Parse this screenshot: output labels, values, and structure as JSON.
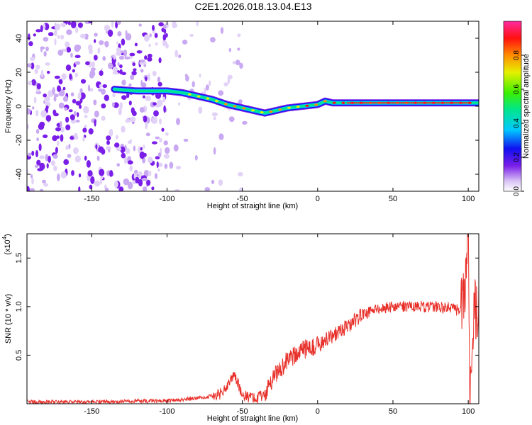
{
  "title": "C2E1.2026.018.13.04.E13",
  "chart_data": [
    {
      "type": "heatmap",
      "xlabel": "Height of straight line (km)",
      "ylabel": "Frequency (Hz)",
      "xlim": [
        -193,
        107
      ],
      "ylim": [
        -50,
        50
      ],
      "xticks": [
        -150,
        -100,
        -50,
        0,
        50,
        100
      ],
      "yticks": [
        -40,
        -20,
        0,
        20,
        40
      ],
      "ridge": {
        "x": [
          -135,
          -120,
          -100,
          -90,
          -80,
          -70,
          -60,
          -50,
          -40,
          -35,
          -30,
          -20,
          -10,
          0,
          5,
          10,
          20,
          40,
          60,
          80,
          100,
          107
        ],
        "y": [
          10,
          9,
          9,
          8,
          6,
          4,
          1,
          -1,
          -3,
          -4,
          -3,
          -1,
          0,
          1,
          3,
          2,
          2,
          2,
          2,
          2,
          2,
          2
        ]
      },
      "colorbar": {
        "label": "Normalized spectral amplitude",
        "range": [
          0.0,
          1.0
        ],
        "ticks": [
          0.0,
          0.2,
          0.4,
          0.6,
          0.8
        ]
      }
    },
    {
      "type": "line",
      "xlabel": "Height of straight line (km)",
      "ylabel": "SNR (10 * v/v)",
      "ylabel_scale": "(x10",
      "ylabel_scale_exp": "4",
      "xlim": [
        -193,
        107
      ],
      "ylim": [
        0,
        1.75
      ],
      "xticks": [
        -150,
        -100,
        -50,
        0,
        50,
        100
      ],
      "yticks": [
        0.5,
        1.0,
        1.5
      ],
      "series": [
        {
          "name": "SNR",
          "color": "#e8302a",
          "x": [
            -193,
            -150,
            -100,
            -90,
            -80,
            -70,
            -65,
            -60,
            -55,
            -50,
            -40,
            -35,
            -30,
            -25,
            -20,
            -10,
            0,
            10,
            20,
            30,
            40,
            50,
            60,
            70,
            80,
            90,
            95,
            98,
            100,
            101,
            103,
            105,
            107
          ],
          "y": [
            0.02,
            0.02,
            0.03,
            0.04,
            0.06,
            0.08,
            0.1,
            0.18,
            0.3,
            0.08,
            0.06,
            0.1,
            0.25,
            0.35,
            0.45,
            0.55,
            0.6,
            0.7,
            0.8,
            0.92,
            0.98,
            1.0,
            1.0,
            1.0,
            1.0,
            0.98,
            0.95,
            1.2,
            1.75,
            0.05,
            0.85,
            1.0,
            0.95
          ]
        }
      ]
    }
  ]
}
